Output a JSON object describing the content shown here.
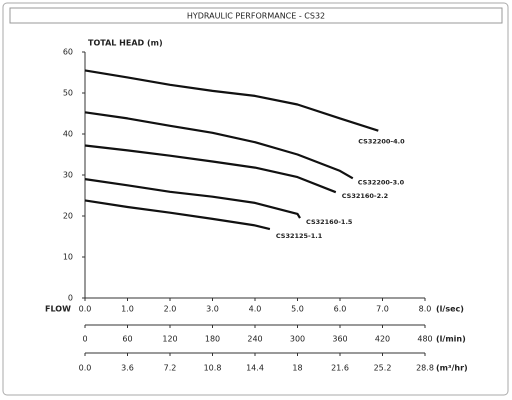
{
  "chart_data": {
    "type": "line",
    "title": "HYDRAULIC PERFORMANCE - CS32",
    "ylabel": "TOTAL HEAD (m)",
    "ylim": [
      0,
      60
    ],
    "yticks": [
      0,
      10,
      20,
      30,
      40,
      50,
      60
    ],
    "xlabel": "FLOW",
    "xunit": "(l/sec)",
    "xlim": [
      0,
      8
    ],
    "xticks": [
      {
        "value": 0,
        "label": "0.0"
      },
      {
        "value": 1,
        "label": "1.0"
      },
      {
        "value": 2,
        "label": "2.0"
      },
      {
        "value": 3,
        "label": "3.0"
      },
      {
        "value": 4,
        "label": "4.0"
      },
      {
        "value": 5,
        "label": "5.0"
      },
      {
        "value": 6,
        "label": "6.0"
      },
      {
        "value": 7,
        "label": "7.0"
      },
      {
        "value": 8,
        "label": "8.0"
      }
    ],
    "extra_x_axes": [
      {
        "unit": "(l/min)",
        "xlim": [
          0,
          480
        ],
        "xticks": [
          0,
          60,
          120,
          180,
          240,
          300,
          360,
          420,
          480
        ]
      },
      {
        "unit": "(m³/hr)",
        "xlim": [
          0,
          28.8
        ],
        "xticks": [
          {
            "value": 0,
            "label": "0.0"
          },
          3.6,
          7.2,
          10.8,
          14.4,
          18,
          21.6,
          25.2,
          28.8
        ]
      }
    ],
    "series": [
      {
        "name": "CS32200-4.0",
        "color": "#111111",
        "x": [
          0,
          1,
          2,
          3,
          4,
          5,
          6,
          6.9
        ],
        "values": [
          55.5,
          53.8,
          52,
          50.5,
          49.3,
          47.2,
          43.8,
          40.8
        ]
      },
      {
        "name": "CS32200-3.0",
        "color": "#111111",
        "x": [
          0,
          1,
          2,
          3,
          4,
          5,
          6,
          6.3
        ],
        "values": [
          45.3,
          43.8,
          42,
          40.3,
          38,
          35,
          31,
          29.2
        ]
      },
      {
        "name": "CS32160-2.2",
        "color": "#111111",
        "x": [
          0,
          1,
          2,
          3,
          4,
          5,
          5.9
        ],
        "values": [
          37.2,
          36,
          34.7,
          33.3,
          31.8,
          29.5,
          25.8
        ]
      },
      {
        "name": "CS32160-1.5",
        "color": "#111111",
        "x": [
          0,
          1,
          2,
          3,
          4,
          5,
          5.06
        ],
        "values": [
          29,
          27.5,
          25.9,
          24.7,
          23.2,
          20.5,
          19.5
        ]
      },
      {
        "name": "CS32125-1.1",
        "color": "#111111",
        "x": [
          0,
          1,
          2,
          3,
          4,
          4.35
        ],
        "values": [
          23.8,
          22.2,
          20.8,
          19.3,
          17.7,
          16.8
        ]
      }
    ]
  }
}
